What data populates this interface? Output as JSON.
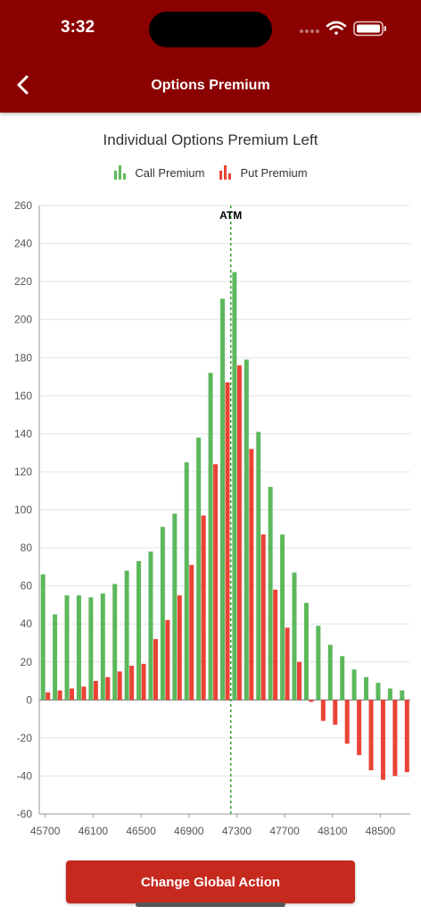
{
  "status_bar": {
    "time": "3:32"
  },
  "header": {
    "title": "Options Premium",
    "back_icon": "chevron-left-icon"
  },
  "actions": {
    "change_global_action_label": "Change Global Action"
  },
  "colors": {
    "header_bg": "#8b0000",
    "call": "#5cb85c",
    "put": "#ea4335",
    "button": "#c62a1f",
    "atm_line": "#2ea02e"
  },
  "chart_data": {
    "type": "bar",
    "title": "Individual Options Premium Left",
    "legend_position": "top-center",
    "grid": true,
    "xlabel": "",
    "ylabel": "",
    "ylim": [
      -60,
      260
    ],
    "yticks": [
      -60,
      -40,
      -20,
      0,
      20,
      40,
      60,
      80,
      100,
      120,
      140,
      160,
      180,
      200,
      220,
      240,
      260
    ],
    "xtick_labels": [
      "45700",
      "46100",
      "46500",
      "46900",
      "47300",
      "47700",
      "48100",
      "48500"
    ],
    "atm_label": "ATM",
    "atm_strike": 47250,
    "strikes": [
      45700,
      45800,
      45900,
      46000,
      46100,
      46200,
      46300,
      46400,
      46500,
      46600,
      46700,
      46800,
      46900,
      47000,
      47100,
      47200,
      47300,
      47400,
      47500,
      47600,
      47700,
      47800,
      47900,
      48000,
      48100,
      48200,
      48300,
      48400,
      48500,
      48600,
      48700
    ],
    "series": [
      {
        "name": "Call Premium",
        "values": [
          66,
          45,
          55,
          55,
          54,
          56,
          61,
          68,
          73,
          78,
          91,
          98,
          125,
          138,
          172,
          211,
          225,
          179,
          141,
          112,
          87,
          67,
          51,
          39,
          29,
          23,
          16,
          12,
          9,
          6,
          5
        ]
      },
      {
        "name": "Put Premium",
        "values": [
          4,
          5,
          6,
          7,
          10,
          12,
          15,
          18,
          19,
          32,
          42,
          55,
          71,
          97,
          124,
          167,
          176,
          132,
          87,
          58,
          38,
          20,
          -1,
          -11,
          -13,
          -23,
          -29,
          -37,
          -42,
          -40,
          -38
        ]
      }
    ]
  }
}
